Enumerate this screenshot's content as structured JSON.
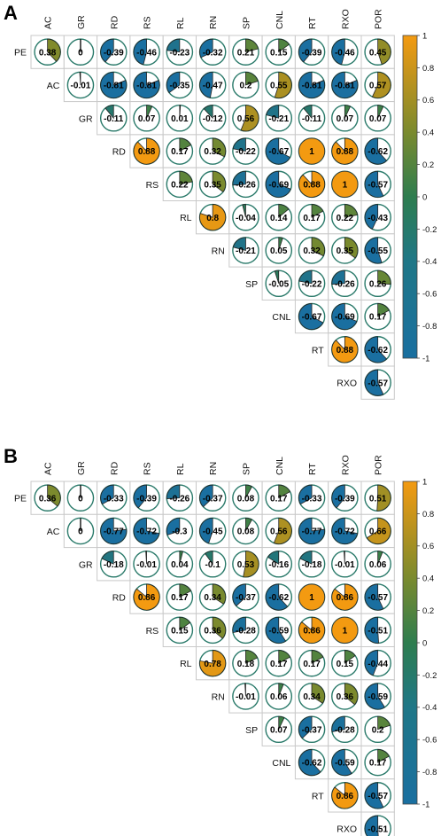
{
  "colors": {
    "neg": "#1a6fa0",
    "mid": "#2e7d4f",
    "pos_mid": "#7a8a2e",
    "pos": "#f39a11",
    "ring": "#2a7a6a"
  },
  "colorbar_ticks": [
    "1",
    "0.8",
    "0.6",
    "0.4",
    "0.2",
    "0",
    "-0.2",
    "-0.4",
    "-0.6",
    "-0.8",
    "-1"
  ],
  "chart_data": [
    {
      "type": "heatmap",
      "panel": "A",
      "variables": [
        "PE",
        "AC",
        "GR",
        "RD",
        "RS",
        "RL",
        "RN",
        "SP",
        "CNL",
        "RT",
        "RXO",
        "POR"
      ],
      "column_labels": [
        "AC",
        "GR",
        "RD",
        "RS",
        "RL",
        "RN",
        "SP",
        "CNL",
        "RT",
        "RXO",
        "POR"
      ],
      "row_labels": [
        "PE",
        "AC",
        "GR",
        "RD",
        "RS",
        "RL",
        "RN",
        "SP",
        "CNL",
        "RT",
        "RXO"
      ],
      "rows": [
        [
          0.38,
          0,
          -0.39,
          -0.46,
          -0.23,
          -0.32,
          0.21,
          0.15,
          -0.39,
          -0.46,
          0.45
        ],
        [
          -0.01,
          -0.81,
          -0.81,
          -0.35,
          -0.47,
          0.2,
          0.55,
          -0.81,
          -0.81,
          0.57
        ],
        [
          -0.11,
          0.07,
          0.01,
          -0.12,
          0.56,
          -0.21,
          -0.11,
          0.07,
          0.07
        ],
        [
          0.88,
          0.17,
          0.32,
          -0.22,
          -0.67,
          1,
          0.88,
          -0.62
        ],
        [
          0.22,
          0.35,
          -0.26,
          -0.69,
          0.88,
          1,
          -0.57
        ],
        [
          0.8,
          -0.04,
          0.14,
          0.17,
          0.22,
          -0.43
        ],
        [
          -0.21,
          0.05,
          0.32,
          0.35,
          -0.55
        ],
        [
          -0.05,
          -0.22,
          -0.26,
          0.26
        ],
        [
          -0.67,
          -0.69,
          0.17
        ],
        [
          0.88,
          -0.62
        ],
        [
          -0.57
        ]
      ],
      "value_labels": [
        [
          "0.38",
          "0",
          "-0.39",
          "-0.46",
          "-0.23",
          "-0.32",
          "0.21",
          "0.15",
          "-0.39",
          "-0.46",
          "0.45"
        ],
        [
          "-0.01",
          "-0.81",
          "-0.81",
          "-0.35",
          "-0.47",
          "0.2",
          "0.55",
          "-0.81",
          "-0.81",
          "0.57"
        ],
        [
          "-0.11",
          "0.07",
          "0.01",
          "-0.12",
          "0.56",
          "-0.21",
          "-0.11",
          "0.07",
          "0.07"
        ],
        [
          "0.88",
          "0.17",
          "0.32",
          "-0.22",
          "-0.67",
          "1",
          "0.88",
          "-0.62"
        ],
        [
          "0.22",
          "0.35",
          "-0.26",
          "-0.69",
          "0.88",
          "1",
          "-0.57"
        ],
        [
          "0.8",
          "-0.04",
          "0.14",
          "0.17",
          "0.22",
          "-0.43"
        ],
        [
          "-0.21",
          "0.05",
          "0.32",
          "0.35",
          "-0.55"
        ],
        [
          "-0.05",
          "-0.22",
          "-0.26",
          "0.26"
        ],
        [
          "-0.67",
          "-0.69",
          "0.17"
        ],
        [
          "0.88",
          "-0.62"
        ],
        [
          "-0.57"
        ]
      ],
      "color_range": [
        -1,
        1
      ],
      "legend": "right"
    },
    {
      "type": "heatmap",
      "panel": "B",
      "variables": [
        "PE",
        "AC",
        "GR",
        "RD",
        "RS",
        "RL",
        "RN",
        "SP",
        "CNL",
        "RT",
        "RXO",
        "POR"
      ],
      "column_labels": [
        "AC",
        "GR",
        "RD",
        "RS",
        "RL",
        "RN",
        "SP",
        "CNL",
        "RT",
        "RXO",
        "POR"
      ],
      "row_labels": [
        "PE",
        "AC",
        "GR",
        "RD",
        "RS",
        "RL",
        "RN",
        "SP",
        "CNL",
        "RT",
        "RXO"
      ],
      "rows": [
        [
          0.36,
          0,
          -0.33,
          -0.39,
          -0.26,
          -0.37,
          0.08,
          0.17,
          -0.33,
          -0.39,
          0.51
        ],
        [
          0,
          -0.77,
          -0.72,
          -0.3,
          -0.45,
          0.08,
          0.56,
          -0.77,
          -0.72,
          0.66
        ],
        [
          -0.18,
          -0.01,
          0.04,
          -0.1,
          0.53,
          -0.16,
          -0.18,
          -0.01,
          0.06
        ],
        [
          0.86,
          0.17,
          0.34,
          -0.37,
          -0.62,
          1,
          0.86,
          -0.57
        ],
        [
          0.15,
          0.36,
          -0.28,
          -0.59,
          0.86,
          1,
          -0.51
        ],
        [
          0.78,
          0.18,
          0.17,
          0.17,
          0.15,
          -0.44
        ],
        [
          -0.01,
          0.06,
          0.34,
          0.36,
          -0.59
        ],
        [
          0.07,
          -0.37,
          -0.28,
          0.2
        ],
        [
          -0.62,
          -0.59,
          0.17
        ],
        [
          0.86,
          -0.57
        ],
        [
          -0.51
        ]
      ],
      "value_labels": [
        [
          "0.36",
          "0",
          "-0.33",
          "-0.39",
          "-0.26",
          "-0.37",
          "0.08",
          "0.17",
          "-0.33",
          "-0.39",
          "0.51"
        ],
        [
          "0",
          "-0.77",
          "-0.72",
          "-0.3",
          "-0.45",
          "0.08",
          "0.56",
          "-0.77",
          "-0.72",
          "0.66"
        ],
        [
          "-0.18",
          "-0.01",
          "0.04",
          "-0.1",
          "0.53",
          "-0.16",
          "-0.18",
          "-0.01",
          "0.06"
        ],
        [
          "0.86",
          "0.17",
          "0.34",
          "-0.37",
          "-0.62",
          "1",
          "0.86",
          "-0.57"
        ],
        [
          "0.15",
          "0.36",
          "-0.28",
          "-0.59",
          "0.86",
          "1",
          "-0.51"
        ],
        [
          "0.78",
          "0.18",
          "0.17",
          "0.17",
          "0.15",
          "-0.44"
        ],
        [
          "-0.01",
          "0.06",
          "0.34",
          "0.36",
          "-0.59"
        ],
        [
          "0.07",
          "-0.37",
          "-0.28",
          "0.2"
        ],
        [
          "-0.62",
          "-0.59",
          "0.17"
        ],
        [
          "0.86",
          "-0.57"
        ],
        [
          "-0.51"
        ]
      ],
      "color_range": [
        -1,
        1
      ],
      "legend": "right"
    }
  ]
}
